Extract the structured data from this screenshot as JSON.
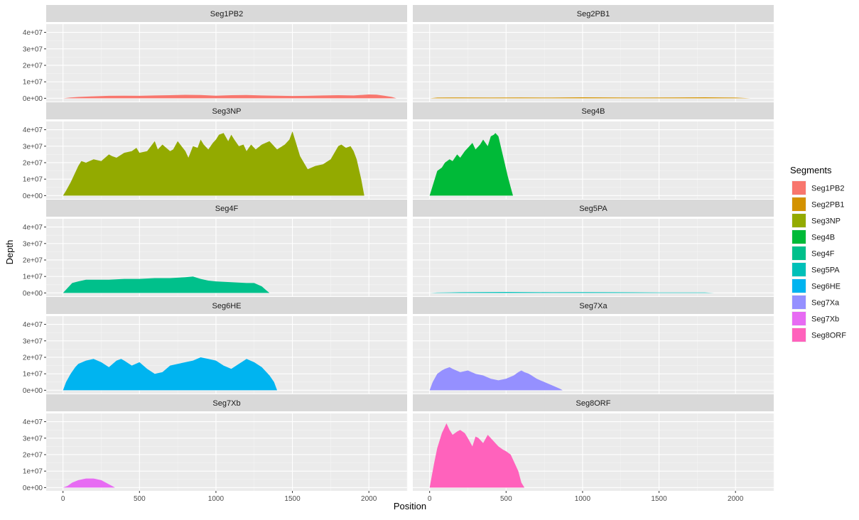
{
  "chart_data": {
    "type": "area",
    "facet_layout": "5 rows x 2 columns, shared axes",
    "xlabel": "Position",
    "ylabel": "Depth",
    "xlim": [
      -110,
      2250
    ],
    "ylim": [
      -2000000,
      45000000
    ],
    "xticks": [
      0,
      500,
      1000,
      1500,
      2000
    ],
    "xtick_labels": [
      "0",
      "500",
      "1000",
      "1500",
      "2000"
    ],
    "yticks": [
      0,
      10000000,
      20000000,
      30000000,
      40000000
    ],
    "ytick_labels": [
      "0e+00",
      "1e+07",
      "2e+07",
      "3e+07",
      "4e+07"
    ],
    "grid": true,
    "legend": {
      "title": "Segments",
      "placement": "right"
    },
    "series": [
      {
        "name": "Seg1PB2",
        "color": "#F8766D",
        "x": [
          0,
          50,
          100,
          200,
          300,
          400,
          500,
          600,
          700,
          800,
          900,
          1000,
          1100,
          1200,
          1300,
          1400,
          1500,
          1600,
          1700,
          1800,
          1900,
          2000,
          2050,
          2100,
          2150,
          2180
        ],
        "y": [
          0,
          500000,
          800000,
          1200000,
          1500000,
          1600000,
          1500000,
          1700000,
          1900000,
          2100000,
          2000000,
          1600000,
          1900000,
          2000000,
          1700000,
          1600000,
          1400000,
          1500000,
          1700000,
          1900000,
          1700000,
          2300000,
          2200000,
          1600000,
          800000,
          0
        ]
      },
      {
        "name": "Seg2PB1",
        "color": "#D39200",
        "x": [
          0,
          50,
          200,
          400,
          600,
          800,
          1000,
          1200,
          1400,
          1600,
          1800,
          2000,
          2100
        ],
        "y": [
          0,
          400000,
          500000,
          400000,
          500000,
          400000,
          600000,
          500000,
          400000,
          500000,
          600000,
          400000,
          0
        ]
      },
      {
        "name": "Seg3NP",
        "color": "#93AA00",
        "x": [
          0,
          20,
          50,
          80,
          100,
          120,
          150,
          200,
          250,
          300,
          320,
          350,
          400,
          450,
          480,
          500,
          550,
          600,
          620,
          650,
          700,
          720,
          750,
          800,
          820,
          850,
          880,
          900,
          920,
          950,
          980,
          1000,
          1020,
          1050,
          1080,
          1100,
          1120,
          1150,
          1180,
          1200,
          1230,
          1260,
          1300,
          1350,
          1400,
          1450,
          1480,
          1500,
          1520,
          1550,
          1600,
          1650,
          1700,
          1750,
          1800,
          1820,
          1850,
          1880,
          1900,
          1920,
          1950,
          1970
        ],
        "y": [
          0,
          3000000,
          8000000,
          14000000,
          18000000,
          21000000,
          20000000,
          22000000,
          21000000,
          25000000,
          24000000,
          23000000,
          26000000,
          27000000,
          29000000,
          26000000,
          27000000,
          33000000,
          28000000,
          31000000,
          27000000,
          28000000,
          33000000,
          27000000,
          23000000,
          30000000,
          29000000,
          34000000,
          31000000,
          28000000,
          32000000,
          34000000,
          37000000,
          38000000,
          33000000,
          37000000,
          34000000,
          30000000,
          31000000,
          27000000,
          31000000,
          28000000,
          31000000,
          33000000,
          28000000,
          31000000,
          34000000,
          39000000,
          33000000,
          24000000,
          16000000,
          18000000,
          19000000,
          22000000,
          30000000,
          31000000,
          29000000,
          30000000,
          27000000,
          22000000,
          10000000,
          0
        ]
      },
      {
        "name": "Seg4B",
        "color": "#00BA38",
        "x": [
          0,
          20,
          50,
          80,
          100,
          130,
          150,
          180,
          200,
          230,
          250,
          280,
          300,
          330,
          350,
          380,
          400,
          420,
          430,
          450,
          470,
          490,
          510,
          530,
          545
        ],
        "y": [
          0,
          6000000,
          15000000,
          17000000,
          20000000,
          22000000,
          21000000,
          25000000,
          23000000,
          27000000,
          29000000,
          32000000,
          28000000,
          31000000,
          34000000,
          30000000,
          36000000,
          37000000,
          38000000,
          36000000,
          28000000,
          20000000,
          12000000,
          5000000,
          0
        ]
      },
      {
        "name": "Seg4F",
        "color": "#00C08B",
        "x": [
          0,
          30,
          60,
          100,
          150,
          200,
          300,
          400,
          500,
          600,
          700,
          800,
          850,
          900,
          950,
          1000,
          1100,
          1200,
          1250,
          1300,
          1330,
          1350
        ],
        "y": [
          0,
          3000000,
          6000000,
          7000000,
          8000000,
          8000000,
          8000000,
          8500000,
          8500000,
          9000000,
          9000000,
          9500000,
          10000000,
          8500000,
          7500000,
          7000000,
          6500000,
          6000000,
          6000000,
          4000000,
          1500000,
          0
        ]
      },
      {
        "name": "Seg5PA",
        "color": "#00C0B8",
        "x": [
          0,
          50,
          200,
          500,
          800,
          1000,
          1200,
          1500,
          1800,
          1860
        ],
        "y": [
          0,
          200000,
          400000,
          600000,
          400000,
          500000,
          400000,
          300000,
          300000,
          0
        ]
      },
      {
        "name": "Seg6HE",
        "color": "#00B4F0",
        "x": [
          0,
          20,
          50,
          80,
          100,
          150,
          200,
          250,
          300,
          350,
          380,
          400,
          450,
          500,
          550,
          600,
          650,
          700,
          750,
          800,
          850,
          900,
          950,
          1000,
          1050,
          1100,
          1150,
          1200,
          1250,
          1300,
          1350,
          1380,
          1400
        ],
        "y": [
          0,
          5000000,
          10000000,
          14000000,
          16000000,
          18000000,
          19000000,
          17000000,
          14000000,
          18000000,
          19000000,
          18000000,
          15000000,
          17000000,
          13000000,
          10000000,
          11000000,
          15000000,
          16000000,
          17000000,
          18000000,
          20000000,
          19000000,
          18000000,
          15000000,
          13000000,
          16000000,
          19000000,
          17000000,
          14000000,
          9000000,
          5000000,
          0
        ]
      },
      {
        "name": "Seg7Xa",
        "color": "#9590FF",
        "x": [
          0,
          20,
          50,
          80,
          100,
          130,
          150,
          200,
          250,
          300,
          350,
          400,
          450,
          500,
          550,
          580,
          600,
          620,
          650,
          700,
          750,
          800,
          850,
          870
        ],
        "y": [
          0,
          5000000,
          10000000,
          12000000,
          13000000,
          14000000,
          13000000,
          11000000,
          12000000,
          10000000,
          9000000,
          7000000,
          6000000,
          7000000,
          9000000,
          11000000,
          12000000,
          11000000,
          10000000,
          7000000,
          5000000,
          3000000,
          1000000,
          0
        ]
      },
      {
        "name": "Seg7Xb",
        "color": "#E76BF3",
        "x": [
          0,
          30,
          60,
          100,
          150,
          200,
          250,
          280,
          300,
          320,
          340
        ],
        "y": [
          0,
          1000000,
          3000000,
          4500000,
          5500000,
          5500000,
          4500000,
          3000000,
          2000000,
          1000000,
          0
        ]
      },
      {
        "name": "Seg8ORF",
        "color": "#FF62BC",
        "x": [
          0,
          10,
          30,
          50,
          80,
          100,
          110,
          130,
          150,
          180,
          200,
          230,
          250,
          280,
          300,
          320,
          350,
          380,
          400,
          430,
          450,
          480,
          500,
          530,
          550,
          580,
          600,
          620
        ],
        "y": [
          0,
          5000000,
          15000000,
          24000000,
          33000000,
          37000000,
          39000000,
          35000000,
          32000000,
          34000000,
          35000000,
          33000000,
          30000000,
          25000000,
          31000000,
          30000000,
          27000000,
          32000000,
          30000000,
          27000000,
          25000000,
          23000000,
          22000000,
          20000000,
          16000000,
          10000000,
          3000000,
          0
        ]
      }
    ]
  }
}
